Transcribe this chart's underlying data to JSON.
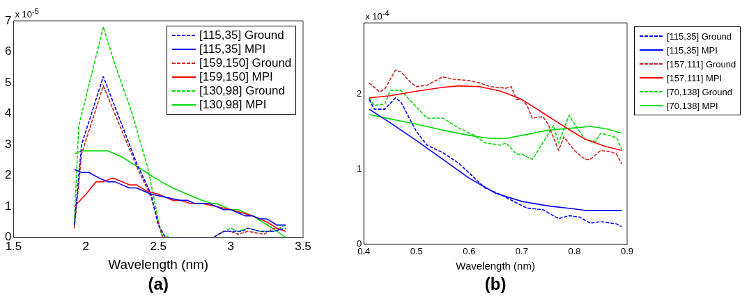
{
  "chart_data": [
    {
      "type": "line",
      "title": "(a)",
      "xlabel": "Wavelength (nm)",
      "annotations": [
        "x 10$^{-5}$"
      ],
      "xlim": [
        1.5,
        3.5
      ],
      "xticks": [
        1.5,
        2,
        2.5,
        3,
        3.5
      ],
      "ylim": [
        0,
        7
      ],
      "yticks": [
        0,
        1,
        2,
        3,
        4,
        5,
        6,
        7
      ],
      "grid": false,
      "legend": "top right",
      "marker": "none",
      "series": [
        {
          "name": "[115,35] Ground",
          "color": "#0000ff",
          "line_style": "dashed",
          "x": [
            1.92,
            1.97,
            2.12,
            2.35,
            2.45,
            2.5,
            2.55,
            2.88,
            2.95,
            3.02,
            3.08,
            3.12,
            3.2,
            3.3,
            3.38
          ],
          "values": [
            0.4,
            3,
            5.2,
            2.4,
            1.4,
            0.4,
            0,
            0,
            0.2,
            0.2,
            0.2,
            0.3,
            0.2,
            0.2,
            0.3
          ]
        },
        {
          "name": "[115,35] MPI",
          "color": "#0000ff",
          "line_style": "solid",
          "x": [
            1.92,
            1.97,
            2.02,
            2.1,
            2.15,
            2.2,
            2.3,
            2.35,
            2.45,
            2.55,
            2.65,
            2.7,
            2.75,
            2.85,
            2.9,
            2.95,
            3.0,
            3.05,
            3.1,
            3.15,
            3.2,
            3.25,
            3.32,
            3.38
          ],
          "values": [
            2.2,
            2.1,
            2.1,
            1.9,
            1.8,
            1.8,
            1.6,
            1.6,
            1.4,
            1.3,
            1.2,
            1.2,
            1.1,
            1.1,
            1.0,
            0.9,
            0.9,
            0.8,
            0.7,
            0.7,
            0.6,
            0.6,
            0.4,
            0.4
          ]
        },
        {
          "name": "[159,150] Ground",
          "color": "#cc2222",
          "line_style": "dashed",
          "x": [
            1.92,
            1.97,
            2.12,
            2.35,
            2.45,
            2.53,
            2.88,
            2.95,
            3.0,
            3.05,
            3.12,
            3.23,
            3.3,
            3.38
          ],
          "values": [
            0.3,
            2.7,
            4.9,
            2.3,
            1.3,
            0,
            0,
            0.2,
            0.2,
            0.1,
            0.2,
            0.1,
            0.3,
            0.2
          ]
        },
        {
          "name": "[159,150] MPI",
          "color": "#ff0000",
          "line_style": "solid",
          "x": [
            1.92,
            2.0,
            2.07,
            2.12,
            2.17,
            2.2,
            2.3,
            2.35,
            2.42,
            2.5,
            2.6,
            2.65,
            2.72,
            2.8,
            2.9,
            3.0,
            3.08,
            3.15,
            3.25,
            3.32,
            3.38
          ],
          "values": [
            1.0,
            1.4,
            1.8,
            1.8,
            1.9,
            1.9,
            1.7,
            1.7,
            1.5,
            1.4,
            1.2,
            1.2,
            1.1,
            1.1,
            1.0,
            0.9,
            0.8,
            0.7,
            0.5,
            0.3,
            0.2
          ]
        },
        {
          "name": "[130,98] Ground",
          "color": "#00dd00",
          "line_style": "dashed",
          "x": [
            1.92,
            1.95,
            2.12,
            2.2,
            2.32,
            2.43,
            2.52,
            2.58,
            2.88,
            3.0,
            3.05,
            3.12,
            3.2,
            3.3,
            3.38
          ],
          "values": [
            0.5,
            3.6,
            6.8,
            5.6,
            4.0,
            2.2,
            0.1,
            0,
            0,
            0.3,
            0.2,
            0.3,
            0.2,
            0.2,
            0.4
          ]
        },
        {
          "name": "[130,98] MPI",
          "color": "#00dd00",
          "line_style": "solid",
          "x": [
            1.92,
            1.97,
            2.05,
            2.15,
            2.25,
            2.35,
            2.45,
            2.52,
            2.6,
            2.7,
            2.8,
            2.87,
            2.9,
            3.0,
            3.05,
            3.1,
            3.15,
            3.22,
            3.32,
            3.38
          ],
          "values": [
            2.7,
            2.8,
            2.8,
            2.8,
            2.6,
            2.3,
            2.0,
            1.8,
            1.6,
            1.4,
            1.2,
            1.1,
            1.1,
            0.9,
            0.9,
            0.8,
            0.7,
            0.5,
            0.2,
            0.0
          ]
        }
      ]
    },
    {
      "type": "line",
      "title": "(b)",
      "xlabel": "Wavelength (nm)",
      "annotations": [
        "x 10$^{-4}$"
      ],
      "xlim": [
        0.4,
        0.9
      ],
      "xticks": [
        0.4,
        0.5,
        0.6,
        0.7,
        0.8,
        0.9
      ],
      "ylim": [
        0,
        2.95
      ],
      "yticks": [
        0,
        1,
        2
      ],
      "grid": false,
      "legend": "right",
      "marker": "none",
      "series": [
        {
          "name": "[115,35] Ground",
          "color": "#0000ff",
          "line_style": "dashed",
          "x": [
            0.41,
            0.42,
            0.44,
            0.46,
            0.47,
            0.5,
            0.52,
            0.55,
            0.58,
            0.6,
            0.63,
            0.66,
            0.69,
            0.71,
            0.74,
            0.77,
            0.79,
            0.81,
            0.83,
            0.85,
            0.88,
            0.89
          ],
          "values": [
            1.93,
            1.8,
            1.8,
            1.95,
            1.9,
            1.5,
            1.32,
            1.22,
            1.08,
            0.95,
            0.75,
            0.66,
            0.55,
            0.48,
            0.46,
            0.34,
            0.38,
            0.36,
            0.28,
            0.3,
            0.27,
            0.23
          ]
        },
        {
          "name": "[115,35] MPI",
          "color": "#0000ff",
          "line_style": "solid",
          "x": [
            0.41,
            0.45,
            0.5,
            0.55,
            0.6,
            0.65,
            0.7,
            0.75,
            0.8,
            0.82,
            0.89
          ],
          "values": [
            1.8,
            1.62,
            1.38,
            1.13,
            0.88,
            0.68,
            0.57,
            0.51,
            0.47,
            0.45,
            0.45
          ]
        },
        {
          "name": "[157,111] Ground",
          "color": "#cc2222",
          "line_style": "dashed",
          "x": [
            0.41,
            0.43,
            0.44,
            0.46,
            0.47,
            0.49,
            0.5,
            0.52,
            0.55,
            0.57,
            0.6,
            0.62,
            0.64,
            0.67,
            0.68,
            0.69,
            0.7,
            0.71,
            0.72,
            0.74,
            0.75,
            0.77,
            0.78,
            0.8,
            0.82,
            0.83,
            0.85,
            0.87,
            0.88,
            0.89
          ],
          "values": [
            2.15,
            2.03,
            2.07,
            2.32,
            2.3,
            2.15,
            2.1,
            2.12,
            2.23,
            2.2,
            2.18,
            2.15,
            2.1,
            2.08,
            2.1,
            1.93,
            1.93,
            1.85,
            1.68,
            1.7,
            1.6,
            1.25,
            1.43,
            1.25,
            1.13,
            1.13,
            1.25,
            1.23,
            1.2,
            1.07
          ]
        },
        {
          "name": "[157,111] MPI",
          "color": "#ff0000",
          "line_style": "solid",
          "x": [
            0.41,
            0.45,
            0.5,
            0.55,
            0.58,
            0.62,
            0.66,
            0.7,
            0.74,
            0.78,
            0.82,
            0.86,
            0.89
          ],
          "values": [
            1.95,
            1.98,
            2.04,
            2.09,
            2.11,
            2.1,
            2.04,
            1.93,
            1.75,
            1.57,
            1.4,
            1.3,
            1.25
          ]
        },
        {
          "name": "[70,138] Ground",
          "color": "#00dd00",
          "line_style": "dashed",
          "x": [
            0.41,
            0.42,
            0.44,
            0.45,
            0.47,
            0.52,
            0.55,
            0.58,
            0.61,
            0.63,
            0.66,
            0.67,
            0.69,
            0.7,
            0.72,
            0.74,
            0.76,
            0.77,
            0.79,
            0.8,
            0.81,
            0.82,
            0.84,
            0.85,
            0.88,
            0.89
          ],
          "values": [
            1.95,
            1.85,
            1.87,
            2.05,
            2.05,
            1.68,
            1.68,
            1.55,
            1.45,
            1.35,
            1.32,
            1.35,
            1.2,
            1.2,
            1.13,
            1.35,
            1.58,
            1.35,
            1.72,
            1.6,
            1.5,
            1.4,
            1.37,
            1.48,
            1.42,
            1.27
          ]
        },
        {
          "name": "[70,138] MPI",
          "color": "#00dd00",
          "line_style": "solid",
          "x": [
            0.41,
            0.45,
            0.5,
            0.55,
            0.6,
            0.64,
            0.67,
            0.7,
            0.75,
            0.8,
            0.83,
            0.86,
            0.89
          ],
          "values": [
            1.73,
            1.67,
            1.6,
            1.52,
            1.45,
            1.41,
            1.41,
            1.45,
            1.52,
            1.55,
            1.57,
            1.54,
            1.48
          ]
        }
      ]
    }
  ]
}
